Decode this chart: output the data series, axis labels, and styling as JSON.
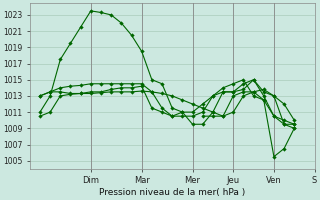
{
  "title": "Pression niveau de la mer( hPa )",
  "bg_color": "#cce8e0",
  "grid_color": "#aaccbb",
  "line_color": "#006600",
  "ylim": [
    1004.0,
    1024.5
  ],
  "yticks": [
    1005,
    1007,
    1009,
    1011,
    1013,
    1015,
    1017,
    1019,
    1021,
    1023
  ],
  "xlim": [
    0.0,
    14.0
  ],
  "day_labels": [
    "Dim",
    "Mar",
    "Mer",
    "Jeu",
    "Ven",
    "S"
  ],
  "day_tick_x": [
    3.0,
    5.5,
    8.0,
    10.0,
    12.0,
    14.0
  ],
  "lines": [
    {
      "x": [
        0.5,
        1.0,
        1.5,
        2.0,
        2.5,
        3.0,
        3.5,
        4.0,
        4.5,
        5.0,
        5.5,
        6.0,
        6.5,
        7.0,
        7.5,
        8.0,
        8.5,
        9.0,
        9.5,
        10.0,
        10.5,
        11.0,
        11.5,
        12.0,
        12.5,
        13.0
      ],
      "y": [
        1010.5,
        1011.0,
        1013.0,
        1013.2,
        1013.3,
        1013.3,
        1013.4,
        1013.5,
        1013.5,
        1013.5,
        1013.6,
        1013.5,
        1013.3,
        1013.0,
        1012.5,
        1012.0,
        1011.5,
        1011.0,
        1010.5,
        1011.0,
        1013.0,
        1013.5,
        1013.8,
        1013.0,
        1009.5,
        1009.0
      ]
    },
    {
      "x": [
        0.5,
        1.0,
        1.5,
        2.0,
        2.5,
        3.0,
        3.5,
        4.0,
        4.5,
        5.0,
        5.5,
        6.0,
        6.5,
        7.0,
        7.5,
        8.0,
        8.5,
        9.0,
        9.5,
        10.0,
        10.5,
        11.0,
        11.5,
        12.0,
        12.5,
        13.0
      ],
      "y": [
        1011.0,
        1013.0,
        1017.5,
        1019.5,
        1021.5,
        1023.5,
        1023.3,
        1023.0,
        1022.0,
        1020.5,
        1018.5,
        1015.0,
        1014.5,
        1011.5,
        1011.0,
        1009.5,
        1009.5,
        1011.0,
        1013.5,
        1013.5,
        1014.5,
        1015.0,
        1013.0,
        1010.5,
        1010.0,
        1009.5
      ]
    },
    {
      "x": [
        0.5,
        1.0,
        1.5,
        2.0,
        2.5,
        3.0,
        3.5,
        4.0,
        4.5,
        5.0,
        5.5,
        6.0,
        6.5,
        7.0,
        7.5,
        8.0,
        8.5,
        9.0,
        9.5,
        10.0,
        10.5,
        11.0,
        11.5,
        12.0,
        12.5,
        13.0
      ],
      "y": [
        1013.0,
        1013.5,
        1013.5,
        1013.3,
        1013.3,
        1013.5,
        1013.5,
        1013.8,
        1014.0,
        1014.0,
        1014.2,
        1011.5,
        1011.0,
        1010.5,
        1010.5,
        1010.5,
        1011.0,
        1013.0,
        1013.5,
        1013.5,
        1013.8,
        1015.0,
        1013.5,
        1013.0,
        1012.0,
        1010.0
      ]
    },
    {
      "x": [
        0.5,
        1.0,
        1.5,
        2.0,
        2.5,
        3.0,
        3.5,
        4.0,
        4.5,
        5.0,
        5.5,
        6.0,
        6.5,
        7.0,
        7.5,
        8.0,
        8.5,
        9.0,
        9.5,
        10.0,
        10.5,
        11.0,
        11.5,
        12.0,
        12.5,
        13.0
      ],
      "y": [
        1013.0,
        1013.5,
        1014.0,
        1014.2,
        1014.3,
        1014.5,
        1014.5,
        1014.5,
        1014.5,
        1014.5,
        1014.5,
        1013.5,
        1011.5,
        1010.5,
        1011.0,
        1011.0,
        1012.0,
        1013.0,
        1014.0,
        1014.5,
        1015.0,
        1013.0,
        1012.5,
        1010.5,
        1009.5,
        1009.5
      ]
    },
    {
      "x": [
        8.5,
        9.0,
        9.5,
        10.0,
        10.5,
        11.0,
        11.5,
        12.0,
        12.5,
        13.0
      ],
      "y": [
        1010.5,
        1010.5,
        1010.5,
        1013.0,
        1013.5,
        1013.5,
        1012.5,
        1005.5,
        1006.5,
        1009.0
      ]
    }
  ]
}
